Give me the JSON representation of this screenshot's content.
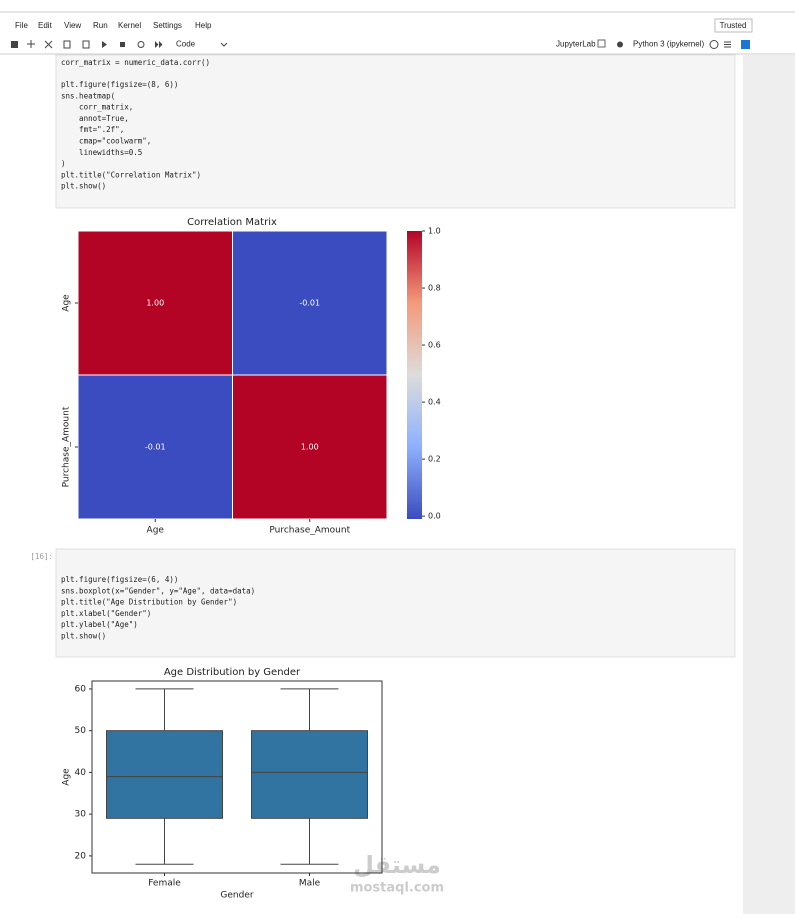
{
  "menu": [
    "File",
    "Edit",
    "View",
    "Run",
    "Kernel",
    "Settings",
    "Help"
  ],
  "trusted": "Trusted",
  "toolbar": {
    "cell_type": "Code",
    "jupyterlab": "JupyterLab",
    "kernel": "Python 3 (ipykernel)"
  },
  "cells": [
    {
      "code_blocks": [
        [
          "corr_matrix = numeric_data.corr()"
        ],
        [
          "plt.figure(figsize=(8, 6))",
          "sns.heatmap(",
          "    corr_matrix,",
          "    annot=True,",
          "    fmt=\".2f\",",
          "    cmap=\"coolwarm\",",
          "    linewidths=0.5",
          ")",
          "plt.title(\"Correlation Matrix\")",
          "plt.show()"
        ]
      ]
    },
    {
      "prompt": "[16]:",
      "code_blocks": [
        [
          "plt.figure(figsize=(6, 4))",
          "sns.boxplot(x=\"Gender\", y=\"Age\", data=data)",
          "plt.title(\"Age Distribution by Gender\")",
          "plt.xlabel(\"Gender\")",
          "plt.ylabel(\"Age\")",
          "plt.show()"
        ]
      ]
    }
  ],
  "chart_data": [
    {
      "type": "heatmap",
      "title": "Correlation Matrix",
      "x_categories": [
        "Age",
        "Purchase_Amount"
      ],
      "y_categories": [
        "Age",
        "Purchase_Amount"
      ],
      "values": [
        [
          1.0,
          -0.01
        ],
        [
          -0.01,
          1.0
        ]
      ],
      "value_labels": [
        [
          "1.00",
          "-0.01"
        ],
        [
          "-0.01",
          "1.00"
        ]
      ],
      "colormap": [
        "#3b4cc0",
        "#8db0fe",
        "#dddcdc",
        "#f49a7b",
        "#b40426"
      ],
      "colorbar_lim": [
        -0.01,
        1.0
      ],
      "colorbar_ticks": [
        {
          "value": 0,
          "label": "0.0"
        },
        0.2,
        0.4,
        0.6,
        0.8,
        {
          "value": 1,
          "label": "1.0"
        }
      ]
    },
    {
      "type": "box",
      "title": "Age Distribution by Gender",
      "xlabel": "Gender",
      "ylabel": "Age",
      "categories": [
        "Female",
        "Male"
      ],
      "color": "#3274a1",
      "boxes": [
        {
          "min": 18,
          "q1": 29,
          "median": 39,
          "q3": 50,
          "max": 60
        },
        {
          "min": 18,
          "q1": 29,
          "median": 40,
          "q3": 50,
          "max": 60
        }
      ],
      "ylim": [
        15.9,
        61.9
      ],
      "yticks": [
        20,
        30,
        40,
        50,
        60
      ]
    }
  ],
  "watermark": {
    "logo": "مستقل",
    "url": "mostaql.com"
  }
}
